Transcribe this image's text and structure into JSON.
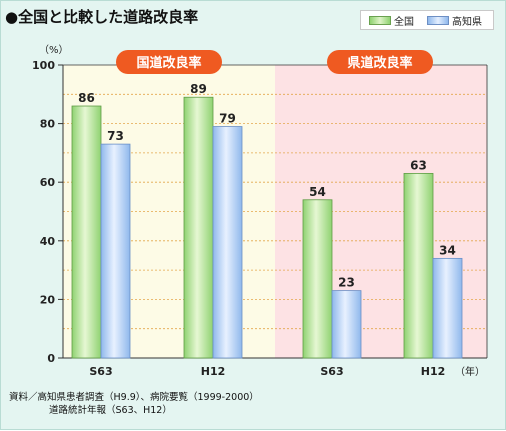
{
  "title": "●全国と比較した道路改良率",
  "legend": {
    "national": "全国",
    "kochi": "高知県"
  },
  "colors": {
    "national": "#8fd271",
    "kochi": "#8fb8ec",
    "panel_left": "#fdfbe6",
    "panel_right": "#fde2e4",
    "badge": "#ef5a21"
  },
  "chart_data": {
    "type": "bar",
    "y_unit": "（%）",
    "x_unit": "（年）",
    "ylim": [
      0,
      100
    ],
    "y_ticks": [
      "0",
      "20",
      "40",
      "60",
      "80",
      "100"
    ],
    "grid": "horizontal-dashed",
    "legend_position": "top-right",
    "groups": [
      {
        "label": "国道改良率",
        "categories": [
          "S63",
          "H12"
        ],
        "series": [
          {
            "name": "全国",
            "values": [
              86,
              89
            ]
          },
          {
            "name": "高知県",
            "values": [
              73,
              79
            ]
          }
        ]
      },
      {
        "label": "県道改良率",
        "categories": [
          "S63",
          "H12"
        ],
        "series": [
          {
            "name": "全国",
            "values": [
              54,
              63
            ]
          },
          {
            "name": "高知県",
            "values": [
              23,
              34
            ]
          }
        ]
      }
    ]
  },
  "footer": {
    "line1": "資料／高知県患者調査（H9.9）、病院要覧（1999-2000）",
    "line2": "道路統計年報（S63、H12）"
  }
}
